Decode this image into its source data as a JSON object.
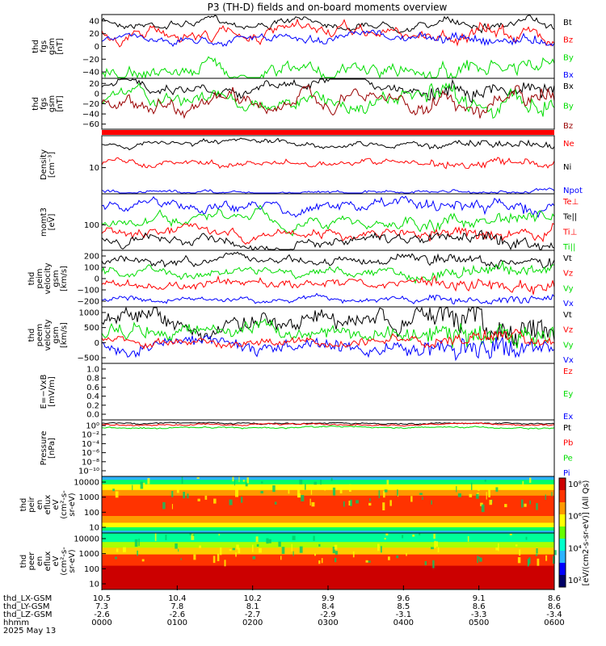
{
  "title": "P3 (TH-D) fields and on-board moments overview",
  "date_label": "2025 May 13",
  "bottom_rows": {
    "labels": [
      "thd_LX-GSM",
      "thd_LY-GSM",
      "thd_LZ-GSM",
      "hhmm"
    ],
    "columns": [
      [
        "10.5",
        "7.3",
        "-2.6",
        "0000"
      ],
      [
        "10.4",
        "7.8",
        "-2.6",
        "0100"
      ],
      [
        "10.2",
        "8.1",
        "-2.7",
        "0200"
      ],
      [
        "9.9",
        "8.4",
        "-2.9",
        "0300"
      ],
      [
        "9.6",
        "8.5",
        "-3.1",
        "0400"
      ],
      [
        "9.1",
        "8.6",
        "-3.3",
        "0500"
      ],
      [
        "8.6",
        "8.6",
        "-3.4",
        "0600"
      ]
    ]
  },
  "colorbar": {
    "ticks": [
      "10⁸",
      "10⁶",
      "10⁴",
      "10²"
    ],
    "label": "[eV/(cm2-s-sr-eV)] (All Qs)"
  },
  "chart_data": [
    {
      "type": "line",
      "ylabel": [
        "thd",
        "fgs",
        "gsm",
        "[nT]"
      ],
      "yticks": [
        "40",
        "20",
        "0",
        "−20",
        "−40"
      ],
      "legend": [
        {
          "text": "Bt",
          "color": "#000000"
        },
        {
          "text": "Bz",
          "color": "#ff0000"
        },
        {
          "text": "By",
          "color": "#00dd00"
        },
        {
          "text": "Bx",
          "color": "#0000ff"
        }
      ],
      "ylim": [
        -48,
        48
      ]
    },
    {
      "type": "line",
      "ylabel": [
        "thd",
        "fgs",
        "gsm",
        "[nT]"
      ],
      "yticks": [
        "20",
        "0",
        "−20",
        "−40",
        "−60"
      ],
      "legend": [
        {
          "text": "Bx",
          "color": "#000000"
        },
        {
          "text": "By",
          "color": "#00dd00"
        },
        {
          "text": "Bz",
          "color": "#990000"
        }
      ],
      "ylim": [
        -72,
        30
      ]
    },
    {
      "type": "bar",
      "note": "flag bar"
    },
    {
      "type": "line",
      "ylabel": [
        "Density",
        "[cm⁻³]"
      ],
      "yticks": [
        "10"
      ],
      "legend": [
        {
          "text": "Ne",
          "color": "#ff0000"
        },
        {
          "text": "Ni",
          "color": "#000000"
        },
        {
          "text": "Npot",
          "color": "#0000ff"
        }
      ],
      "scale": "log"
    },
    {
      "type": "line",
      "ylabel": [
        "mom̲t3",
        "[eV]"
      ],
      "yticks": [
        "100"
      ],
      "legend": [
        {
          "text": "Te⊥",
          "color": "#ff0000"
        },
        {
          "text": "Te||",
          "color": "#000000"
        },
        {
          "text": "Ti⊥",
          "color": "#ff0000"
        },
        {
          "text": "Ti||",
          "color": "#00dd00"
        }
      ],
      "scale": "log"
    },
    {
      "type": "line",
      "ylabel": [
        "thd",
        "peim",
        "velocity",
        "gsm",
        "[km/s]"
      ],
      "yticks": [
        "200",
        "100",
        "0",
        "−100",
        "−200"
      ],
      "legend": [
        {
          "text": "Vt",
          "color": "#000000"
        },
        {
          "text": "Vz",
          "color": "#ff0000"
        },
        {
          "text": "Vy",
          "color": "#00dd00"
        },
        {
          "text": "Vx",
          "color": "#0000ff"
        }
      ],
      "ylim": [
        -230,
        240
      ]
    },
    {
      "type": "line",
      "ylabel": [
        "thd",
        "peem",
        "velocity",
        "gsm",
        "[km/s]"
      ],
      "yticks": [
        "1000",
        "500",
        "0",
        "−500"
      ],
      "legend": [
        {
          "text": "Vt",
          "color": "#000000"
        },
        {
          "text": "Vz",
          "color": "#ff0000"
        },
        {
          "text": "Vy",
          "color": "#00dd00"
        },
        {
          "text": "Vx",
          "color": "#0000ff"
        }
      ],
      "ylim": [
        -600,
        1100
      ]
    },
    {
      "type": "line",
      "ylabel": [
        "E=−VxB",
        "[mV/m]"
      ],
      "yticks": [
        "1.0",
        "0.8",
        "0.6",
        "0.4",
        "0.2",
        "0.0"
      ],
      "legend": [
        {
          "text": "Ez",
          "color": "#ff0000"
        },
        {
          "text": "Ey",
          "color": "#00dd00"
        },
        {
          "text": "Ex",
          "color": "#0000ff"
        }
      ],
      "ylim": [
        0,
        1
      ]
    },
    {
      "type": "line",
      "ylabel": [
        "Pressure",
        "[nPa]"
      ],
      "yticks": [
        "10⁰",
        "10⁻²",
        "10⁻⁴",
        "10⁻⁶",
        "10⁻⁸",
        "10⁻¹⁰"
      ],
      "legend": [
        {
          "text": "Pt",
          "color": "#000000"
        },
        {
          "text": "Pb",
          "color": "#ff0000"
        },
        {
          "text": "Pe",
          "color": "#00dd00"
        },
        {
          "text": "Pi",
          "color": "#0000ff"
        }
      ],
      "scale": "log"
    },
    {
      "type": "heatmap",
      "ylabel": [
        "thd",
        "peir",
        "en",
        "eflux",
        "eV",
        "(cm²-s-",
        "sr-eV)"
      ],
      "yticks": [
        "10000",
        "1000",
        "100",
        "10"
      ]
    },
    {
      "type": "heatmap",
      "ylabel": [
        "thd",
        "peer",
        "en",
        "eflux",
        "eV",
        "(cm²-s-",
        "sr-eV)"
      ],
      "yticks": [
        "10000",
        "1000",
        "100",
        "10"
      ]
    }
  ]
}
